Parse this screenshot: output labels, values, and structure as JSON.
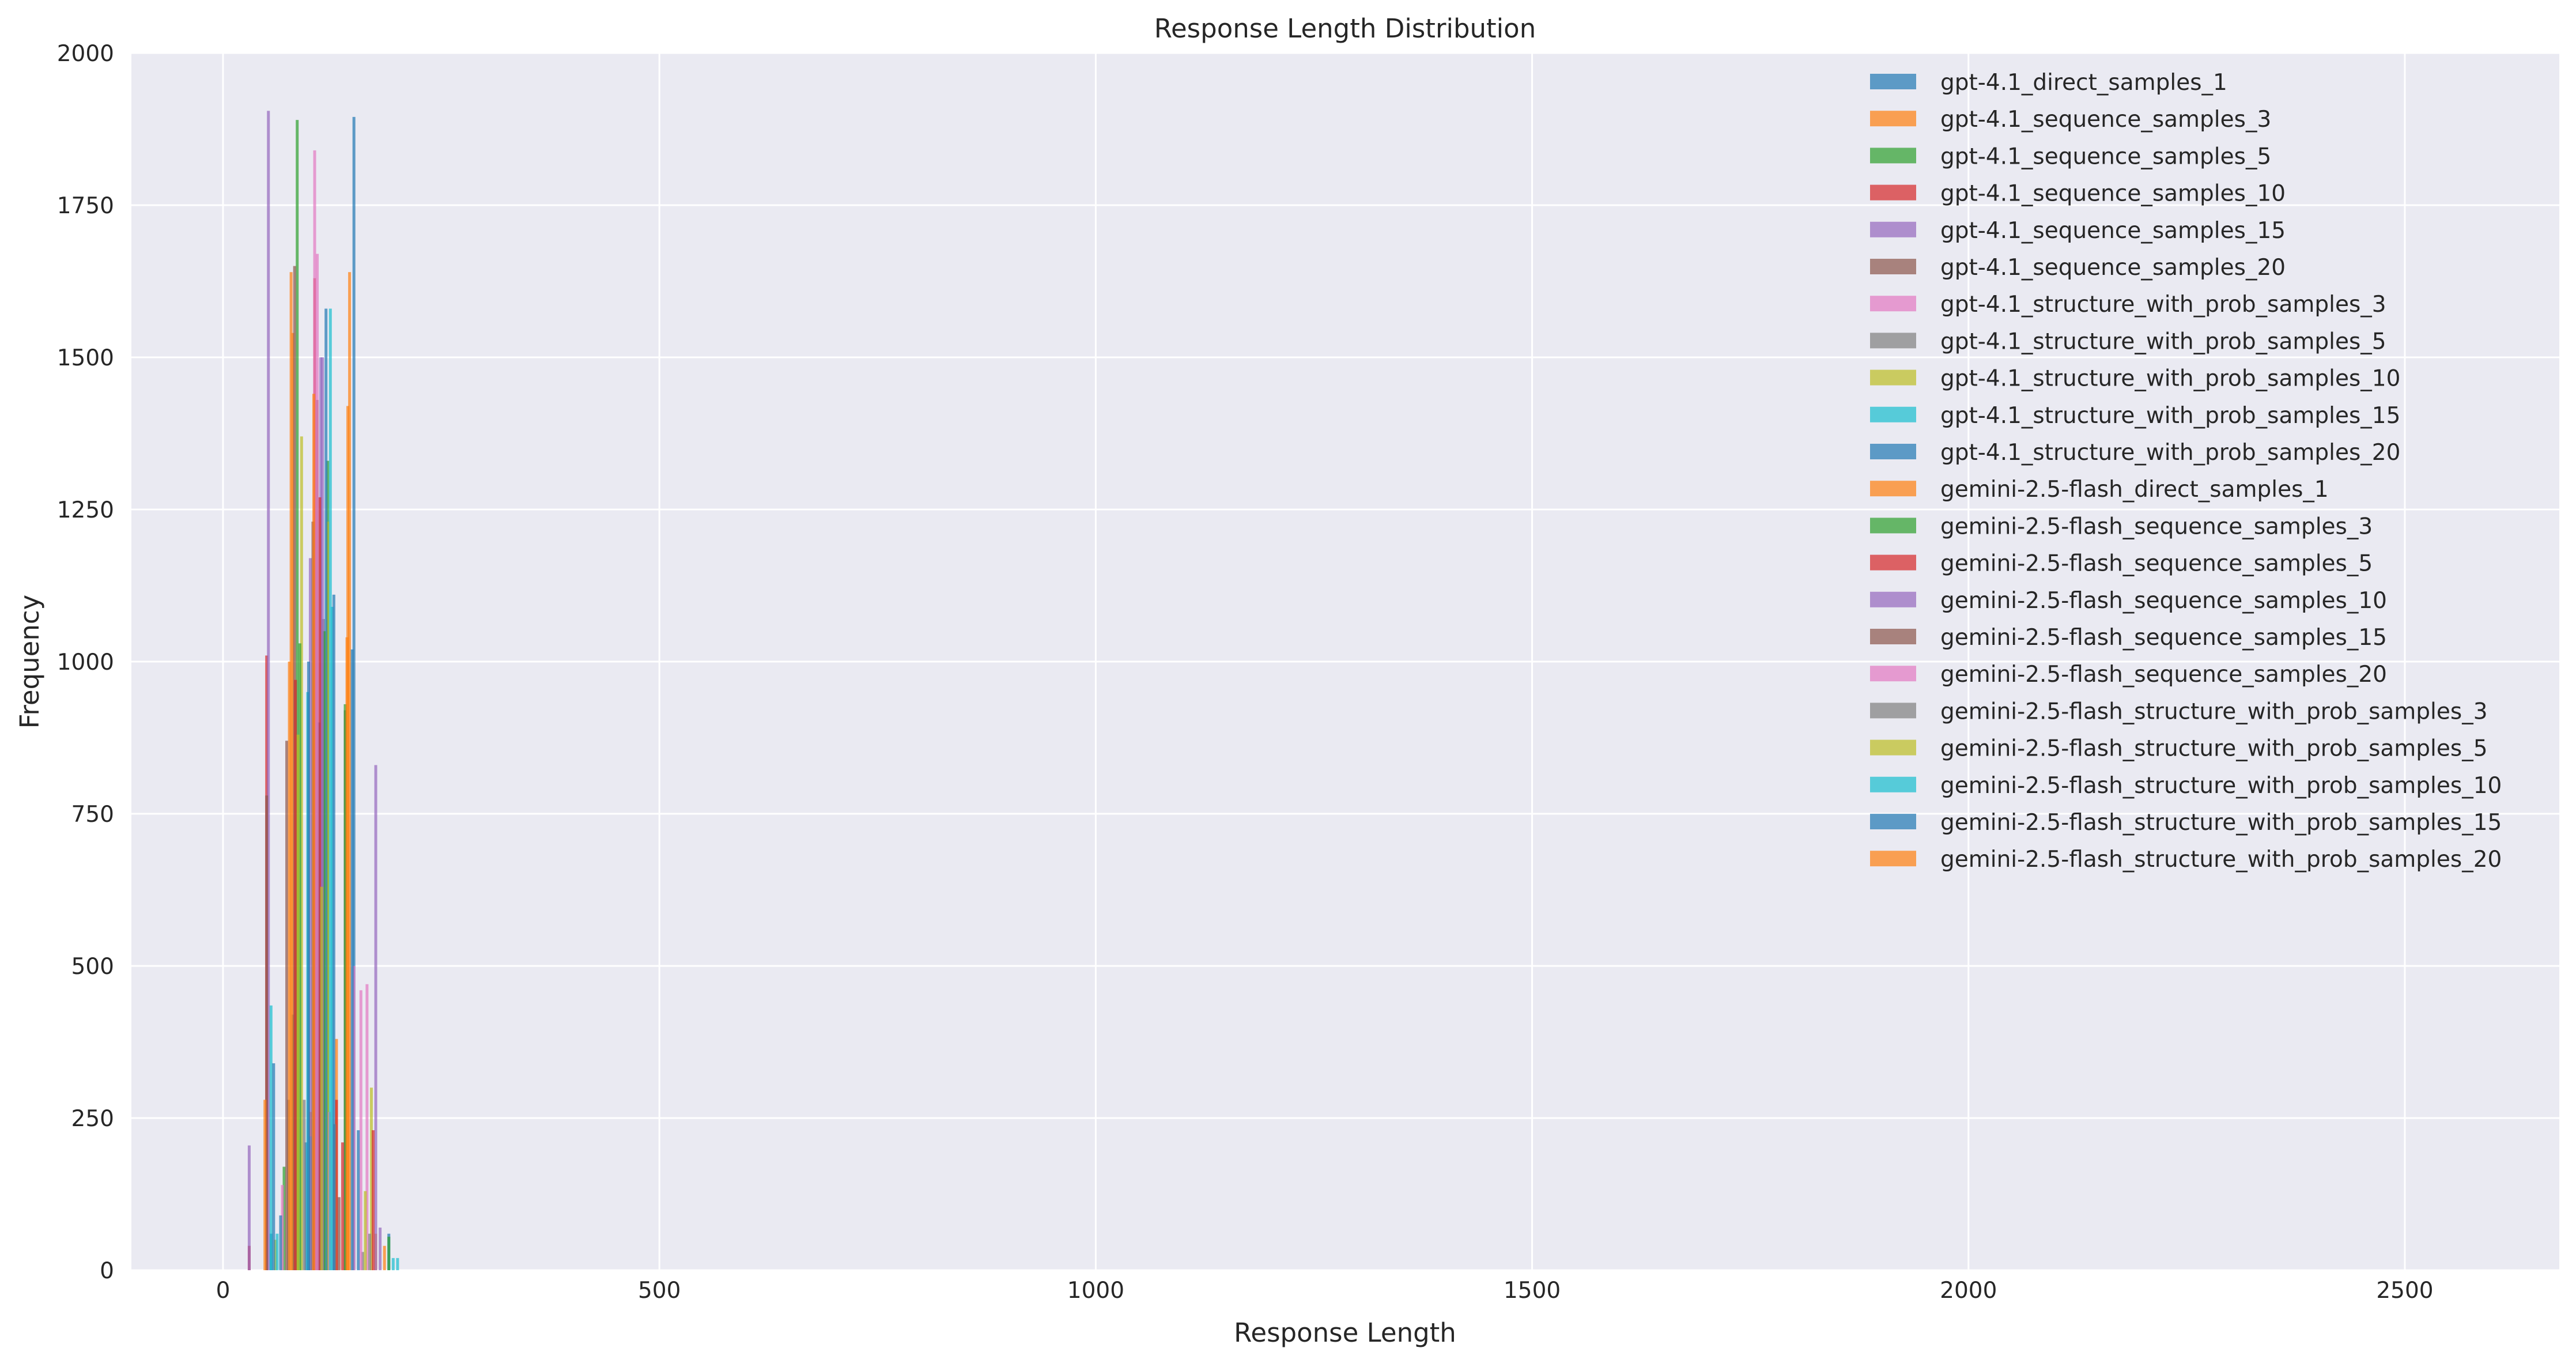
{
  "chart_data": {
    "type": "bar",
    "title": "Response Length Distribution",
    "xlabel": "Response Length",
    "ylabel": "Frequency",
    "xlim": [
      -105,
      2677
    ],
    "ylim": [
      0,
      2000
    ],
    "xticks": [
      0,
      500,
      1000,
      1500,
      2000,
      2500
    ],
    "yticks": [
      0,
      250,
      500,
      750,
      1000,
      1250,
      1500,
      1750,
      2000
    ],
    "grid": true,
    "legend_position": "top-right",
    "bar_opacity": 0.7,
    "series": [
      {
        "name": "gpt-4.1_direct_samples_1",
        "color": "#1f77b4",
        "x": [
          55,
          80,
          110,
          150,
          190
        ],
        "values": [
          60,
          420,
          900,
          1895,
          60
        ]
      },
      {
        "name": "gpt-4.1_sequence_samples_3",
        "color": "#ff7f0e",
        "x": [
          80,
          100,
          130,
          145,
          175
        ],
        "values": [
          1540,
          260,
          380,
          1640,
          60
        ]
      },
      {
        "name": "gpt-4.1_sequence_samples_5",
        "color": "#2ca02c",
        "x": [
          70,
          85,
          120,
          190
        ],
        "values": [
          170,
          1890,
          1330,
          55
        ]
      },
      {
        "name": "gpt-4.1_sequence_samples_10",
        "color": "#d62728",
        "x": [
          30,
          50,
          105,
          130
        ],
        "values": [
          40,
          1010,
          1630,
          280
        ]
      },
      {
        "name": "gpt-4.1_sequence_samples_15",
        "color": "#9467bd",
        "x": [
          30,
          52,
          112,
          175
        ],
        "values": [
          205,
          1905,
          1500,
          830
        ]
      },
      {
        "name": "gpt-4.1_sequence_samples_20",
        "color": "#8c564b",
        "x": [
          50,
          82,
          108,
          140
        ],
        "values": [
          780,
          1650,
          1430,
          920
        ]
      },
      {
        "name": "gpt-4.1_structure_with_prob_samples_3",
        "color": "#e377c2",
        "x": [
          68,
          105,
          150,
          165
        ],
        "values": [
          140,
          1840,
          500,
          470
        ]
      },
      {
        "name": "gpt-4.1_structure_with_prob_samples_5",
        "color": "#7f7f7f",
        "x": [
          75,
          115,
          160
        ],
        "values": [
          280,
          1070,
          30
        ]
      },
      {
        "name": "gpt-4.1_structure_with_prob_samples_10",
        "color": "#bcbd22",
        "x": [
          60,
          90,
          120,
          170
        ],
        "values": [
          50,
          1370,
          1230,
          300
        ]
      },
      {
        "name": "gpt-4.1_structure_with_prob_samples_15",
        "color": "#17becf",
        "x": [
          55,
          100,
          125,
          195
        ],
        "values": [
          435,
          220,
          1090,
          20
        ]
      },
      {
        "name": "gpt-4.1_structure_with_prob_samples_20",
        "color": "#1f77b4",
        "x": [
          58,
          95,
          118,
          148
        ],
        "values": [
          340,
          210,
          1580,
          1020
        ]
      },
      {
        "name": "gemini-2.5-flash_direct_samples_1",
        "color": "#ff7f0e",
        "x": [
          48,
          78,
          143
        ],
        "values": [
          280,
          1640,
          1420
        ]
      },
      {
        "name": "gemini-2.5-flash_sequence_samples_3",
        "color": "#2ca02c",
        "x": [
          88,
          116,
          140
        ],
        "values": [
          1030,
          1050,
          930
        ]
      },
      {
        "name": "gemini-2.5-flash_sequence_samples_5",
        "color": "#d62728",
        "x": [
          83,
          111,
          137,
          172
        ],
        "values": [
          970,
          1270,
          210,
          230
        ]
      },
      {
        "name": "gemini-2.5-flash_sequence_samples_10",
        "color": "#9467bd",
        "x": [
          100,
          114,
          180
        ],
        "values": [
          1170,
          1500,
          70
        ]
      },
      {
        "name": "gemini-2.5-flash_sequence_samples_15",
        "color": "#8c564b",
        "x": [
          73,
          103,
          133
        ],
        "values": [
          870,
          1230,
          120
        ]
      },
      {
        "name": "gemini-2.5-flash_sequence_samples_20",
        "color": "#e377c2",
        "x": [
          108,
          122,
          158
        ],
        "values": [
          1670,
          260,
          460
        ]
      },
      {
        "name": "gemini-2.5-flash_structure_with_prob_samples_3",
        "color": "#7f7f7f",
        "x": [
          93,
          128,
          168
        ],
        "values": [
          280,
          240,
          60
        ]
      },
      {
        "name": "gemini-2.5-flash_structure_with_prob_samples_5",
        "color": "#bcbd22",
        "x": [
          86,
          113,
          163
        ],
        "values": [
          880,
          630,
          130
        ]
      },
      {
        "name": "gemini-2.5-flash_structure_with_prob_samples_10",
        "color": "#17becf",
        "x": [
          62,
          97,
          123,
          200
        ],
        "values": [
          60,
          950,
          1580,
          20
        ]
      },
      {
        "name": "gemini-2.5-flash_structure_with_prob_samples_15",
        "color": "#1f77b4",
        "x": [
          66,
          98,
          127,
          155
        ],
        "values": [
          90,
          1000,
          1110,
          230
        ]
      },
      {
        "name": "gemini-2.5-flash_structure_with_prob_samples_20",
        "color": "#ff7f0e",
        "x": [
          76,
          104,
          142,
          185
        ],
        "values": [
          1000,
          1440,
          1040,
          40
        ]
      }
    ]
  }
}
